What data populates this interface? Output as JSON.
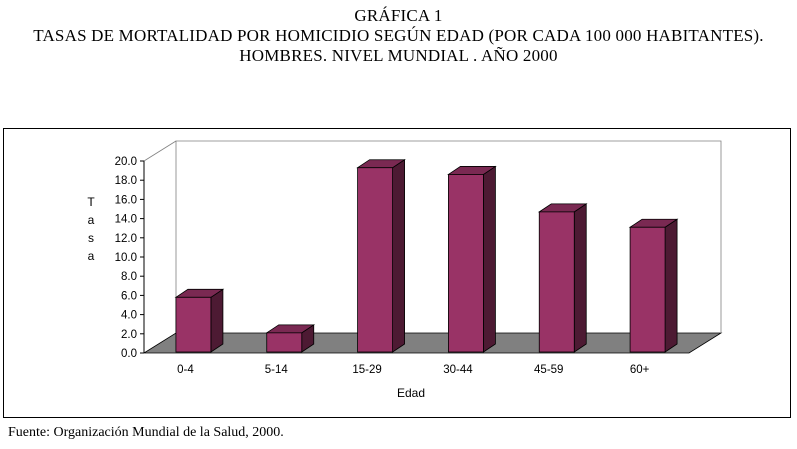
{
  "header": {
    "line1": "GRÁFICA 1",
    "line2": "TASAS DE MORTALIDAD POR HOMICIDIO SEGÚN EDAD (POR CADA 100 000 HABITANTES).",
    "line3": "HOMBRES. NIVEL MUNDIAL . AÑO 2000"
  },
  "footer": {
    "source": "Fuente: Organización Mundial de la Salud, 2000."
  },
  "colors": {
    "bar_front": "#993366",
    "bar_side": "#4d1a33",
    "bar_top": "#7a2952",
    "floor": "#808080"
  },
  "chart_data": {
    "type": "bar",
    "title": "",
    "xlabel": "Edad",
    "ylabel": "Tasa",
    "categories": [
      "0-4",
      "5-14",
      "15-29",
      "30-44",
      "45-59",
      "60+"
    ],
    "values": [
      5.8,
      2.1,
      19.3,
      18.6,
      14.7,
      13.1
    ],
    "ylim": [
      0,
      20
    ],
    "yticks": [
      "0.0",
      "2.0",
      "4.0",
      "6.0",
      "8.0",
      "10.0",
      "12.0",
      "14.0",
      "16.0",
      "18.0",
      "20.0"
    ],
    "grid": false,
    "legend": "none",
    "style": "3d-column"
  }
}
